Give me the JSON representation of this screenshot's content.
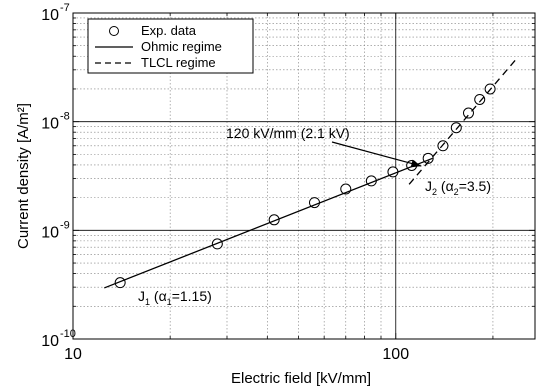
{
  "chart_data": {
    "type": "scatter",
    "xlabel": "Electric field [kV/mm]",
    "ylabel": "Current density [A/m²]",
    "xscale": "log",
    "yscale": "log",
    "xlim": [
      10,
      270
    ],
    "ylim": [
      1e-10,
      1e-07
    ],
    "grid": true,
    "legend_position": "top-left",
    "x_ticks": [
      {
        "value": 10,
        "label": "10"
      },
      {
        "value": 100,
        "label": "100"
      }
    ],
    "y_ticks": [
      {
        "value": 1e-10,
        "base": "10",
        "exp": "-10"
      },
      {
        "value": 1e-09,
        "base": "10",
        "exp": "-9"
      },
      {
        "value": 1e-08,
        "base": "10",
        "exp": "-8"
      },
      {
        "value": 1e-07,
        "base": "10",
        "exp": "-7"
      }
    ],
    "series": [
      {
        "name": "Exp. data",
        "style": "marker-open-circle",
        "x": [
          14,
          28,
          42,
          56,
          70,
          84,
          98,
          112,
          126,
          140,
          154,
          168,
          182,
          196
        ],
        "y": [
          3.3e-10,
          7.5e-10,
          1.25e-09,
          1.8e-09,
          2.4e-09,
          2.85e-09,
          3.45e-09,
          3.95e-09,
          4.6e-09,
          6e-09,
          8.8e-09,
          1.2e-08,
          1.6e-08,
          2e-08
        ]
      },
      {
        "name": "Ohmic regime",
        "style": "solid-line",
        "x": [
          12.5,
          130
        ],
        "y": [
          2.95e-10,
          4.6e-09
        ]
      },
      {
        "name": "TLCL regime",
        "style": "dashed-line",
        "x": [
          110,
          235
        ],
        "y": [
          2.65e-09,
          3.7e-08
        ]
      }
    ],
    "annotations": [
      {
        "id": "threshold",
        "text": "120 kV/mm (2.1 kV)",
        "arrow_to": {
          "x": 120,
          "y": 3.9e-09
        }
      },
      {
        "id": "j1",
        "main": "J",
        "sub": "1",
        "rest": " (α",
        "sub2": "1",
        "tail": "=1.15)"
      },
      {
        "id": "j2",
        "main": "J",
        "sub": "2",
        "rest": " (α",
        "sub2": "2",
        "tail": "=3.5)"
      }
    ],
    "colors": {
      "axes": "#000000",
      "grid": "#808080",
      "background": "#ffffff"
    }
  }
}
